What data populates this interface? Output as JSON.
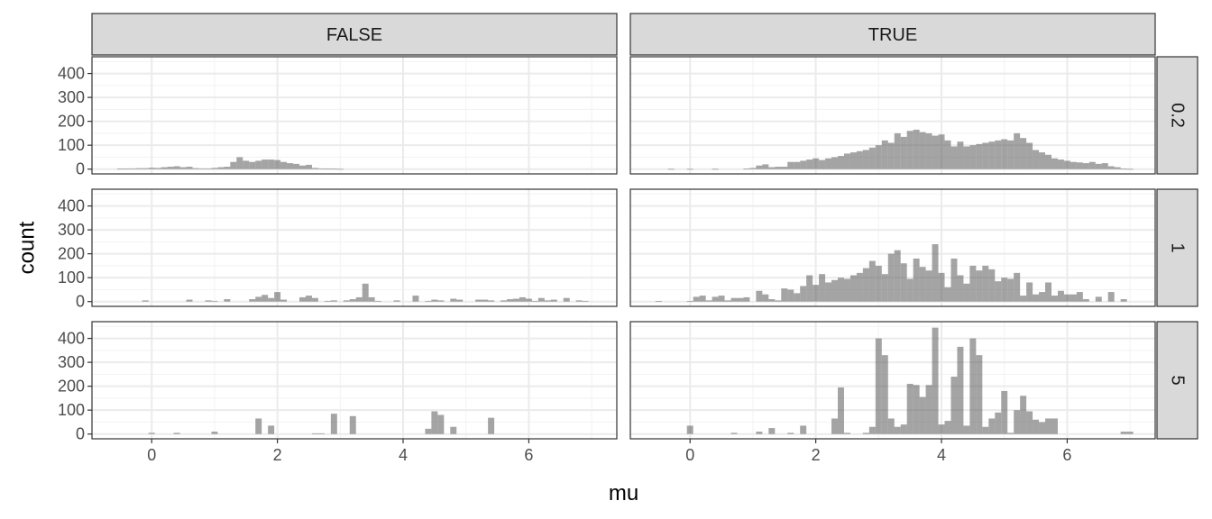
{
  "chart_data": {
    "type": "bar",
    "xlabel": "mu",
    "ylabel": "count",
    "xlim": [
      -0.95,
      7.4
    ],
    "ylim": [
      -20,
      470
    ],
    "xticks": [
      "0",
      "2",
      "4",
      "6"
    ],
    "yticks": [
      "0",
      "100",
      "200",
      "300",
      "400"
    ],
    "grid": true,
    "col_facets": [
      "FALSE",
      "TRUE"
    ],
    "row_facets": [
      "0.2",
      "1",
      "5"
    ],
    "bin_width": 0.1,
    "panels": [
      {
        "col": "FALSE",
        "row": "0.2",
        "bins": [
          [
            -0.5,
            2
          ],
          [
            -0.4,
            2
          ],
          [
            -0.3,
            3
          ],
          [
            -0.2,
            4
          ],
          [
            -0.1,
            4
          ],
          [
            0,
            6
          ],
          [
            0.1,
            5
          ],
          [
            0.2,
            8
          ],
          [
            0.3,
            10
          ],
          [
            0.4,
            12
          ],
          [
            0.5,
            8
          ],
          [
            0.6,
            10
          ],
          [
            0.7,
            4
          ],
          [
            0.8,
            3
          ],
          [
            0.9,
            3
          ],
          [
            1.0,
            5
          ],
          [
            1.1,
            8
          ],
          [
            1.2,
            10
          ],
          [
            1.3,
            30
          ],
          [
            1.4,
            50
          ],
          [
            1.5,
            35
          ],
          [
            1.6,
            30
          ],
          [
            1.7,
            35
          ],
          [
            1.8,
            40
          ],
          [
            1.9,
            40
          ],
          [
            2.0,
            38
          ],
          [
            2.1,
            30
          ],
          [
            2.2,
            25
          ],
          [
            2.3,
            22
          ],
          [
            2.4,
            15
          ],
          [
            2.5,
            18
          ],
          [
            2.6,
            5
          ],
          [
            2.7,
            3
          ],
          [
            2.8,
            2
          ],
          [
            2.9,
            2
          ],
          [
            3.0,
            1
          ]
        ]
      },
      {
        "col": "TRUE",
        "row": "0.2",
        "bins": [
          [
            -0.3,
            1
          ],
          [
            0,
            1
          ],
          [
            0.4,
            1
          ],
          [
            0.9,
            2
          ],
          [
            1.0,
            5
          ],
          [
            1.1,
            15
          ],
          [
            1.2,
            20
          ],
          [
            1.3,
            8
          ],
          [
            1.4,
            10
          ],
          [
            1.5,
            10
          ],
          [
            1.6,
            30
          ],
          [
            1.7,
            30
          ],
          [
            1.8,
            35
          ],
          [
            1.9,
            40
          ],
          [
            2.0,
            45
          ],
          [
            2.1,
            38
          ],
          [
            2.2,
            45
          ],
          [
            2.3,
            50
          ],
          [
            2.4,
            55
          ],
          [
            2.5,
            65
          ],
          [
            2.6,
            70
          ],
          [
            2.7,
            75
          ],
          [
            2.8,
            80
          ],
          [
            2.9,
            90
          ],
          [
            3.0,
            100
          ],
          [
            3.1,
            120
          ],
          [
            3.2,
            110
          ],
          [
            3.3,
            150
          ],
          [
            3.4,
            135
          ],
          [
            3.5,
            160
          ],
          [
            3.6,
            165
          ],
          [
            3.7,
            155
          ],
          [
            3.8,
            150
          ],
          [
            3.9,
            140
          ],
          [
            4.0,
            145
          ],
          [
            4.1,
            120
          ],
          [
            4.2,
            95
          ],
          [
            4.3,
            115
          ],
          [
            4.4,
            95
          ],
          [
            4.5,
            100
          ],
          [
            4.6,
            105
          ],
          [
            4.7,
            110
          ],
          [
            4.8,
            115
          ],
          [
            4.9,
            120
          ],
          [
            5.0,
            125
          ],
          [
            5.1,
            120
          ],
          [
            5.2,
            150
          ],
          [
            5.3,
            130
          ],
          [
            5.4,
            110
          ],
          [
            5.5,
            80
          ],
          [
            5.6,
            70
          ],
          [
            5.7,
            60
          ],
          [
            5.8,
            45
          ],
          [
            5.9,
            40
          ],
          [
            6.0,
            35
          ],
          [
            6.1,
            30
          ],
          [
            6.2,
            28
          ],
          [
            6.3,
            25
          ],
          [
            6.4,
            30
          ],
          [
            6.5,
            22
          ],
          [
            6.6,
            25
          ],
          [
            6.7,
            12
          ],
          [
            6.8,
            8
          ],
          [
            6.9,
            2
          ],
          [
            7.0,
            1
          ]
        ]
      },
      {
        "col": "FALSE",
        "row": "1",
        "bins": [
          [
            -0.1,
            5
          ],
          [
            0.6,
            8
          ],
          [
            0.9,
            5
          ],
          [
            1.0,
            3
          ],
          [
            1.2,
            10
          ],
          [
            1.6,
            10
          ],
          [
            1.7,
            20
          ],
          [
            1.8,
            28
          ],
          [
            1.9,
            15
          ],
          [
            2.0,
            40
          ],
          [
            2.1,
            8
          ],
          [
            2.4,
            18
          ],
          [
            2.5,
            25
          ],
          [
            2.6,
            15
          ],
          [
            2.8,
            3
          ],
          [
            2.9,
            5
          ],
          [
            3.1,
            5
          ],
          [
            3.2,
            10
          ],
          [
            3.3,
            18
          ],
          [
            3.4,
            75
          ],
          [
            3.5,
            18
          ],
          [
            3.6,
            3
          ],
          [
            3.9,
            5
          ],
          [
            4.2,
            25
          ],
          [
            4.4,
            3
          ],
          [
            4.5,
            8
          ],
          [
            4.6,
            5
          ],
          [
            4.8,
            12
          ],
          [
            4.9,
            8
          ],
          [
            5.2,
            8
          ],
          [
            5.3,
            8
          ],
          [
            5.4,
            5
          ],
          [
            5.6,
            5
          ],
          [
            5.7,
            10
          ],
          [
            5.8,
            12
          ],
          [
            5.9,
            18
          ],
          [
            6.0,
            12
          ],
          [
            6.1,
            3
          ],
          [
            6.2,
            15
          ],
          [
            6.3,
            5
          ],
          [
            6.4,
            8
          ],
          [
            6.6,
            15
          ],
          [
            6.8,
            5
          ],
          [
            6.9,
            3
          ]
        ]
      },
      {
        "col": "TRUE",
        "row": "1",
        "bins": [
          [
            -0.5,
            2
          ],
          [
            0,
            2
          ],
          [
            0.1,
            20
          ],
          [
            0.2,
            25
          ],
          [
            0.3,
            5
          ],
          [
            0.4,
            20
          ],
          [
            0.5,
            25
          ],
          [
            0.6,
            5
          ],
          [
            0.7,
            15
          ],
          [
            0.8,
            15
          ],
          [
            0.9,
            18
          ],
          [
            1.1,
            45
          ],
          [
            1.2,
            30
          ],
          [
            1.3,
            10
          ],
          [
            1.4,
            5
          ],
          [
            1.5,
            55
          ],
          [
            1.6,
            50
          ],
          [
            1.7,
            35
          ],
          [
            1.8,
            65
          ],
          [
            1.9,
            110
          ],
          [
            2.0,
            70
          ],
          [
            2.1,
            115
          ],
          [
            2.2,
            80
          ],
          [
            2.3,
            90
          ],
          [
            2.4,
            100
          ],
          [
            2.5,
            95
          ],
          [
            2.6,
            110
          ],
          [
            2.7,
            120
          ],
          [
            2.8,
            140
          ],
          [
            2.9,
            170
          ],
          [
            3.0,
            150
          ],
          [
            3.1,
            115
          ],
          [
            3.2,
            200
          ],
          [
            3.3,
            215
          ],
          [
            3.4,
            160
          ],
          [
            3.5,
            95
          ],
          [
            3.6,
            180
          ],
          [
            3.7,
            145
          ],
          [
            3.8,
            130
          ],
          [
            3.9,
            240
          ],
          [
            4.0,
            120
          ],
          [
            4.1,
            60
          ],
          [
            4.2,
            180
          ],
          [
            4.3,
            110
          ],
          [
            4.4,
            75
          ],
          [
            4.5,
            150
          ],
          [
            4.6,
            130
          ],
          [
            4.7,
            150
          ],
          [
            4.8,
            135
          ],
          [
            4.9,
            85
          ],
          [
            5.0,
            100
          ],
          [
            5.1,
            95
          ],
          [
            5.2,
            120
          ],
          [
            5.3,
            25
          ],
          [
            5.4,
            80
          ],
          [
            5.5,
            30
          ],
          [
            5.6,
            40
          ],
          [
            5.7,
            80
          ],
          [
            5.8,
            25
          ],
          [
            5.9,
            45
          ],
          [
            6.0,
            30
          ],
          [
            6.1,
            30
          ],
          [
            6.2,
            40
          ],
          [
            6.3,
            10
          ],
          [
            6.5,
            20
          ],
          [
            6.7,
            40
          ],
          [
            6.9,
            10
          ]
        ]
      },
      {
        "col": "FALSE",
        "row": "5",
        "bins": [
          [
            0,
            5
          ],
          [
            0.4,
            5
          ],
          [
            1,
            10
          ],
          [
            1.7,
            65
          ],
          [
            1.9,
            35
          ],
          [
            2.6,
            3
          ],
          [
            2.7,
            3
          ],
          [
            2.9,
            85
          ],
          [
            3.2,
            75
          ],
          [
            4.4,
            22
          ],
          [
            4.5,
            95
          ],
          [
            4.6,
            80
          ],
          [
            4.8,
            30
          ],
          [
            5.4,
            68
          ]
        ]
      },
      {
        "col": "TRUE",
        "row": "5",
        "bins": [
          [
            0,
            35
          ],
          [
            0.7,
            5
          ],
          [
            1.1,
            10
          ],
          [
            1.3,
            25
          ],
          [
            1.6,
            5
          ],
          [
            1.8,
            35
          ],
          [
            2.3,
            65
          ],
          [
            2.4,
            195
          ],
          [
            2.5,
            5
          ],
          [
            2.8,
            5
          ],
          [
            2.9,
            30
          ],
          [
            3.0,
            400
          ],
          [
            3.1,
            330
          ],
          [
            3.2,
            65
          ],
          [
            3.3,
            30
          ],
          [
            3.4,
            40
          ],
          [
            3.5,
            210
          ],
          [
            3.6,
            205
          ],
          [
            3.7,
            155
          ],
          [
            3.8,
            205
          ],
          [
            3.9,
            445
          ],
          [
            4.0,
            40
          ],
          [
            4.1,
            55
          ],
          [
            4.2,
            240
          ],
          [
            4.3,
            365
          ],
          [
            4.4,
            35
          ],
          [
            4.5,
            400
          ],
          [
            4.6,
            330
          ],
          [
            4.7,
            30
          ],
          [
            4.8,
            65
          ],
          [
            4.9,
            90
          ],
          [
            5.0,
            180
          ],
          [
            5.1,
            5
          ],
          [
            5.2,
            100
          ],
          [
            5.3,
            160
          ],
          [
            5.4,
            95
          ],
          [
            5.5,
            60
          ],
          [
            5.6,
            50
          ],
          [
            5.7,
            65
          ],
          [
            5.8,
            65
          ],
          [
            6.9,
            10
          ],
          [
            7.0,
            10
          ]
        ]
      }
    ]
  }
}
